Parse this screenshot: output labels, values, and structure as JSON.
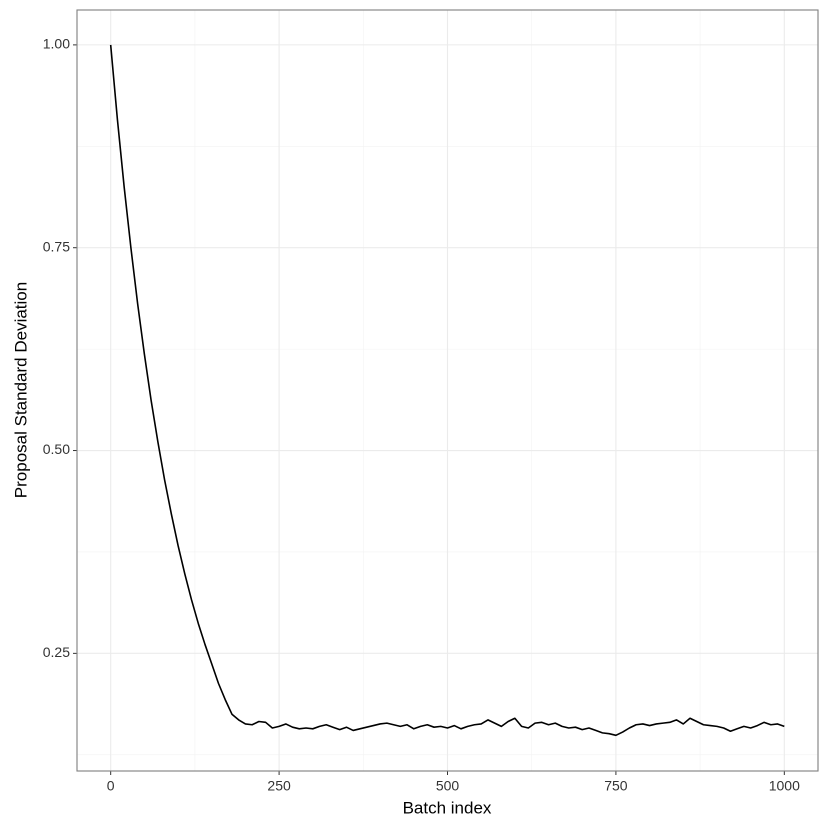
{
  "chart_data": {
    "type": "line",
    "x_label": "Batch index",
    "y_label": "Proposal Standard Deviation",
    "x": [
      0,
      10,
      20,
      30,
      40,
      50,
      60,
      70,
      80,
      90,
      100,
      110,
      120,
      130,
      140,
      150,
      160,
      170,
      180,
      190,
      200,
      210,
      220,
      230,
      240,
      250,
      260,
      270,
      280,
      290,
      300,
      310,
      320,
      330,
      340,
      350,
      360,
      370,
      380,
      390,
      400,
      410,
      420,
      430,
      440,
      450,
      460,
      470,
      480,
      490,
      500,
      510,
      520,
      530,
      540,
      550,
      560,
      570,
      580,
      590,
      600,
      610,
      620,
      630,
      640,
      650,
      660,
      670,
      680,
      690,
      700,
      710,
      720,
      730,
      740,
      750,
      760,
      770,
      780,
      790,
      800,
      810,
      820,
      830,
      840,
      850,
      860,
      870,
      880,
      890,
      900,
      910,
      920,
      930,
      940,
      950,
      960,
      970,
      980,
      990,
      1000
    ],
    "values": [
      1.0,
      0.908,
      0.825,
      0.75,
      0.681,
      0.619,
      0.562,
      0.511,
      0.464,
      0.422,
      0.383,
      0.348,
      0.316,
      0.287,
      0.261,
      0.237,
      0.213,
      0.193,
      0.175,
      0.168,
      0.163,
      0.162,
      0.166,
      0.165,
      0.158,
      0.16,
      0.163,
      0.159,
      0.157,
      0.158,
      0.157,
      0.16,
      0.162,
      0.159,
      0.156,
      0.159,
      0.155,
      0.157,
      0.159,
      0.161,
      0.163,
      0.164,
      0.162,
      0.16,
      0.162,
      0.157,
      0.16,
      0.162,
      0.159,
      0.16,
      0.158,
      0.161,
      0.157,
      0.16,
      0.162,
      0.163,
      0.168,
      0.164,
      0.16,
      0.166,
      0.17,
      0.16,
      0.158,
      0.164,
      0.165,
      0.162,
      0.164,
      0.16,
      0.158,
      0.159,
      0.156,
      0.158,
      0.155,
      0.152,
      0.151,
      0.149,
      0.153,
      0.158,
      0.162,
      0.163,
      0.161,
      0.163,
      0.164,
      0.165,
      0.168,
      0.163,
      0.17,
      0.166,
      0.162,
      0.161,
      0.16,
      0.158,
      0.154,
      0.157,
      0.16,
      0.158,
      0.161,
      0.165,
      0.162,
      0.163,
      0.16
    ],
    "color": "#000000",
    "xlim": [
      -50,
      1050
    ],
    "xticks": [
      0,
      250,
      500,
      750,
      1000
    ],
    "x_minor_ticks": [
      125,
      375,
      625,
      875
    ],
    "ylim": [
      0.105,
      1.043
    ],
    "yticks": [
      0.25,
      {
        "value": 0.5,
        "label": "0.50"
      },
      0.75,
      {
        "value": 1,
        "label": "1.00"
      }
    ],
    "y_minor_ticks": [
      0.125,
      0.375,
      0.625,
      0.875
    ],
    "grid": true
  }
}
